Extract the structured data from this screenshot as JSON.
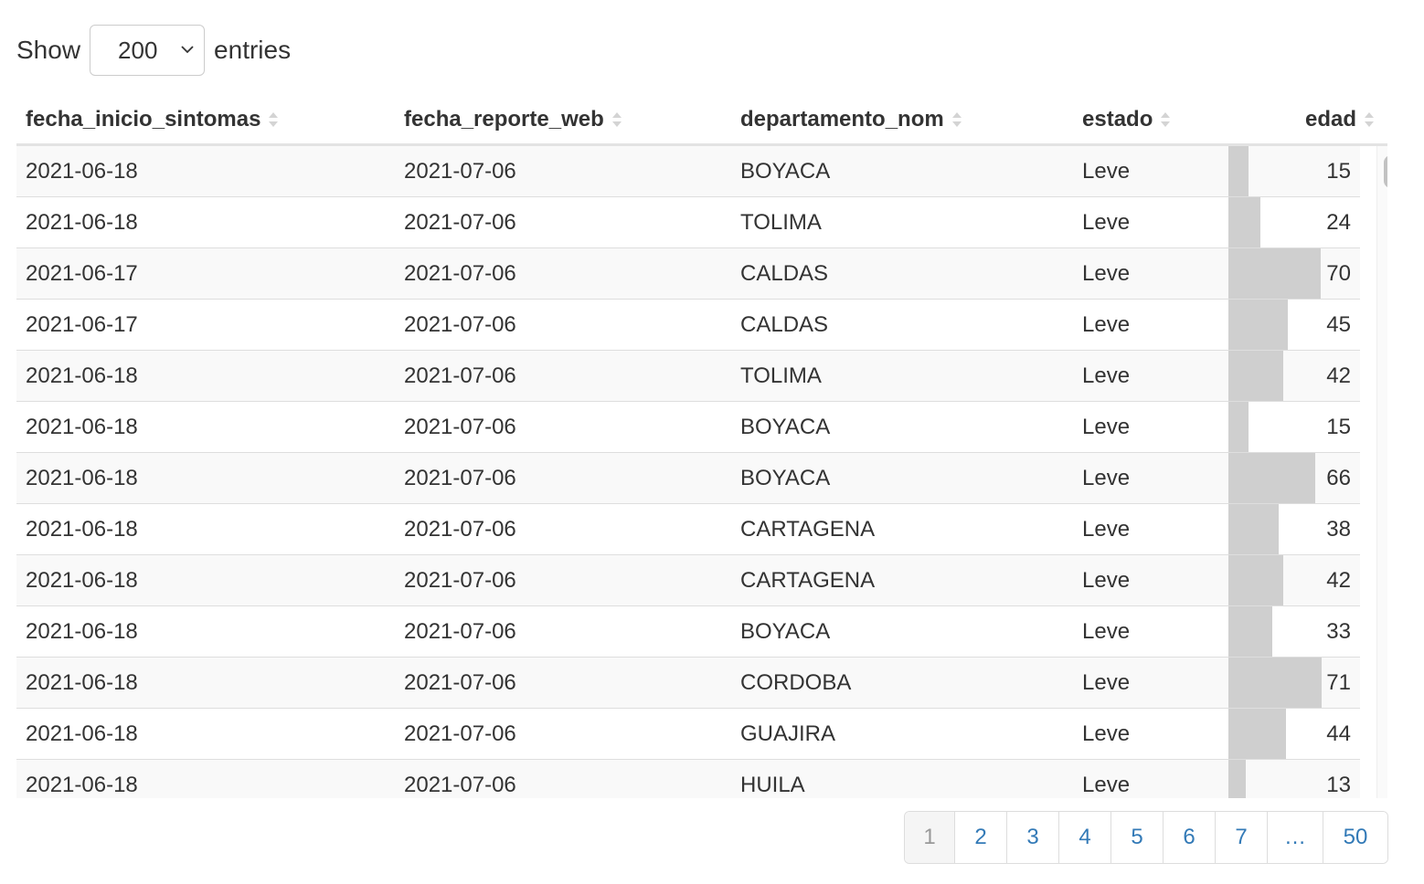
{
  "length_control": {
    "prefix": "Show",
    "selected": "200",
    "suffix": "entries"
  },
  "table": {
    "columns": [
      {
        "label": "fecha_inicio_sintomas"
      },
      {
        "label": "fecha_reporte_web"
      },
      {
        "label": "departamento_nom"
      },
      {
        "label": "estado"
      },
      {
        "label": "edad"
      }
    ],
    "edad_bar_max": 100,
    "rows": [
      {
        "fecha_inicio_sintomas": "2021-06-18",
        "fecha_reporte_web": "2021-07-06",
        "departamento_nom": "BOYACA",
        "estado": "Leve",
        "edad": 15
      },
      {
        "fecha_inicio_sintomas": "2021-06-18",
        "fecha_reporte_web": "2021-07-06",
        "departamento_nom": "TOLIMA",
        "estado": "Leve",
        "edad": 24
      },
      {
        "fecha_inicio_sintomas": "2021-06-17",
        "fecha_reporte_web": "2021-07-06",
        "departamento_nom": "CALDAS",
        "estado": "Leve",
        "edad": 70
      },
      {
        "fecha_inicio_sintomas": "2021-06-17",
        "fecha_reporte_web": "2021-07-06",
        "departamento_nom": "CALDAS",
        "estado": "Leve",
        "edad": 45
      },
      {
        "fecha_inicio_sintomas": "2021-06-18",
        "fecha_reporte_web": "2021-07-06",
        "departamento_nom": "TOLIMA",
        "estado": "Leve",
        "edad": 42
      },
      {
        "fecha_inicio_sintomas": "2021-06-18",
        "fecha_reporte_web": "2021-07-06",
        "departamento_nom": "BOYACA",
        "estado": "Leve",
        "edad": 15
      },
      {
        "fecha_inicio_sintomas": "2021-06-18",
        "fecha_reporte_web": "2021-07-06",
        "departamento_nom": "BOYACA",
        "estado": "Leve",
        "edad": 66
      },
      {
        "fecha_inicio_sintomas": "2021-06-18",
        "fecha_reporte_web": "2021-07-06",
        "departamento_nom": "CARTAGENA",
        "estado": "Leve",
        "edad": 38
      },
      {
        "fecha_inicio_sintomas": "2021-06-18",
        "fecha_reporte_web": "2021-07-06",
        "departamento_nom": "CARTAGENA",
        "estado": "Leve",
        "edad": 42
      },
      {
        "fecha_inicio_sintomas": "2021-06-18",
        "fecha_reporte_web": "2021-07-06",
        "departamento_nom": "BOYACA",
        "estado": "Leve",
        "edad": 33
      },
      {
        "fecha_inicio_sintomas": "2021-06-18",
        "fecha_reporte_web": "2021-07-06",
        "departamento_nom": "CORDOBA",
        "estado": "Leve",
        "edad": 71
      },
      {
        "fecha_inicio_sintomas": "2021-06-18",
        "fecha_reporte_web": "2021-07-06",
        "departamento_nom": "GUAJIRA",
        "estado": "Leve",
        "edad": 44
      },
      {
        "fecha_inicio_sintomas": "2021-06-18",
        "fecha_reporte_web": "2021-07-06",
        "departamento_nom": "HUILA",
        "estado": "Leve",
        "edad": 13
      }
    ]
  },
  "pagination": {
    "pages": [
      "1",
      "2",
      "3",
      "4",
      "5",
      "6",
      "7",
      "…",
      "50"
    ],
    "current": "1"
  },
  "colors": {
    "bar_fill": "#cfcfcf",
    "link": "#337ab7",
    "stripe": "#f9f9f9"
  }
}
